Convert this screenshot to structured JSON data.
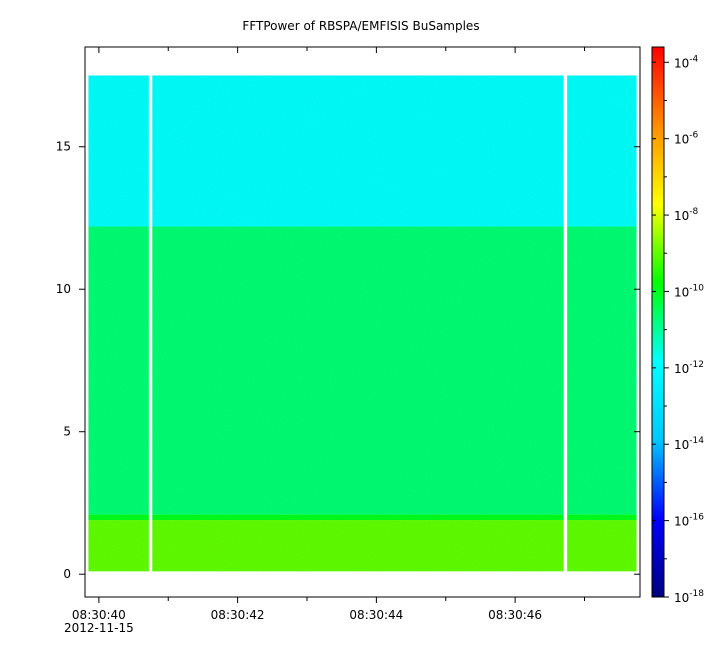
{
  "chart_data": {
    "type": "heatmap",
    "title": "FFTPower of RBSPA/EMFISIS  BuSamples",
    "xlabel": "",
    "ylabel": "",
    "x_axis": {
      "start_time": "08:30:39.8",
      "end_time": "08:30:47.8",
      "ticks": [
        {
          "time_s": 40,
          "label": "08:30:40",
          "sublabel": "2012-11-15"
        },
        {
          "time_s": 42,
          "label": "08:30:42",
          "sublabel": ""
        },
        {
          "time_s": 44,
          "label": "08:30:44",
          "sublabel": ""
        },
        {
          "time_s": 46,
          "label": "08:30:46",
          "sublabel": ""
        }
      ],
      "minor_tick_seconds": [
        41,
        43,
        45,
        47
      ]
    },
    "y_axis": {
      "range": [
        -0.8,
        18.5
      ],
      "ticks": [
        0,
        5,
        10,
        15
      ],
      "tick_labels": [
        "0",
        "5",
        "10",
        "15"
      ]
    },
    "data_extent": {
      "y_min": 0.1,
      "y_max": 17.5,
      "x_start_s": 39.85,
      "x_end_s": 47.75
    },
    "data_gaps_seconds": [
      [
        40.72,
        40.77
      ],
      [
        46.7,
        46.75
      ]
    ],
    "bands": [
      {
        "y_from": 0.1,
        "y_to": 1.9,
        "log10_power": -9.0
      },
      {
        "y_from": 1.9,
        "y_to": 2.1,
        "log10_power": -10.0
      },
      {
        "y_from": 2.1,
        "y_to": 12.2,
        "log10_power": -10.7
      },
      {
        "y_from": 12.2,
        "y_to": 17.5,
        "log10_power": -11.8
      }
    ],
    "colorbar": {
      "scale": "log",
      "range": [
        -18,
        -3.6
      ],
      "colormap": [
        "#00007f",
        "#0000ff",
        "#00c8ff",
        "#00ffff",
        "#00ff00",
        "#ffff00",
        "#ff8c00",
        "#ff0000"
      ],
      "ticks": [
        {
          "base": "10",
          "exp": "-4"
        },
        {
          "base": "10",
          "exp": "-6"
        },
        {
          "base": "10",
          "exp": "-8"
        },
        {
          "base": "10",
          "exp": "-10"
        },
        {
          "base": "10",
          "exp": "-12"
        },
        {
          "base": "10",
          "exp": "-14"
        },
        {
          "base": "10",
          "exp": "-16"
        },
        {
          "base": "10",
          "exp": "-18"
        }
      ]
    }
  }
}
